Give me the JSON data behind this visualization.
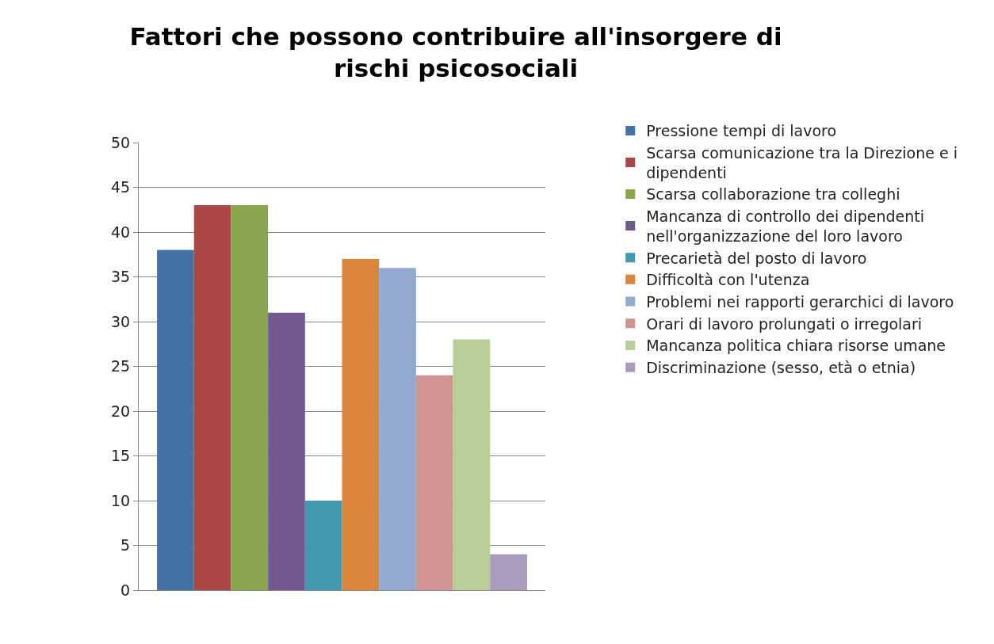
{
  "chart_data": {
    "type": "bar",
    "title": "Fattori che possono contribuire all'insorgere di rischi psicosociali",
    "categories": [
      null
    ],
    "series": [
      {
        "name": "Pressione tempi di lavoro",
        "color": "#4572a7",
        "values": [
          38
        ]
      },
      {
        "name": "Scarsa comunicazione tra la Direzione e i dipendenti",
        "color": "#aa4643",
        "values": [
          43
        ]
      },
      {
        "name": "Scarsa collaborazione tra colleghi",
        "color": "#89a54e",
        "values": [
          43
        ]
      },
      {
        "name": "Mancanza di controllo dei dipendenti nell'organizzazione del loro lavoro",
        "color": "#71588f",
        "values": [
          31
        ]
      },
      {
        "name": "Precarietà del posto di lavoro",
        "color": "#4198af",
        "values": [
          10
        ]
      },
      {
        "name": "Difficoltà con l'utenza",
        "color": "#db843d",
        "values": [
          37
        ]
      },
      {
        "name": "Problemi nei rapporti gerarchici di lavoro",
        "color": "#93a9cf",
        "values": [
          36
        ]
      },
      {
        "name": "Orari di lavoro prolungati o irregolari",
        "color": "#d19392",
        "values": [
          24
        ]
      },
      {
        "name": "Mancanza politica chiara risorse umane",
        "color": "#b9cd96",
        "values": [
          28
        ]
      },
      {
        "name": "Discriminazione (sesso, età o etnia)",
        "color": "#a99bbd",
        "values": [
          4
        ]
      }
    ],
    "ylim": [
      0,
      50
    ],
    "yticks": [
      0,
      5,
      10,
      15,
      20,
      25,
      30,
      35,
      40,
      45,
      50
    ],
    "grid": "y",
    "legend": "right"
  }
}
